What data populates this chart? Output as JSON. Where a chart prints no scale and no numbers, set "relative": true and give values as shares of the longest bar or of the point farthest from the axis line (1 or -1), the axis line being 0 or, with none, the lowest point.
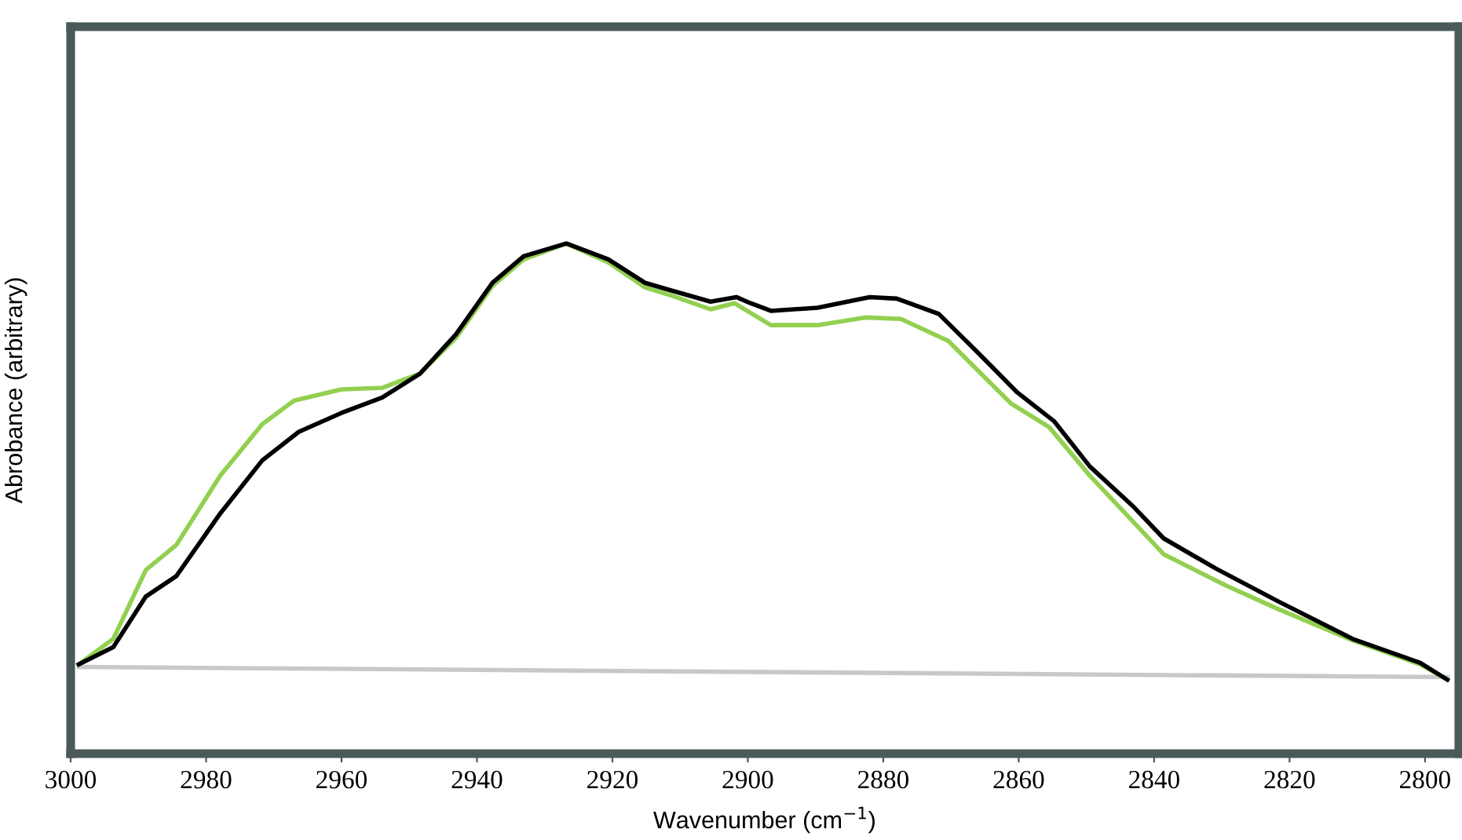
{
  "chart_data": {
    "type": "line",
    "relative": true,
    "xlabel": "Wavenumber (cm$^{−1}$)",
    "ylabel": "Abrobance (arbitrary)",
    "xlim": [
      3000,
      2795
    ],
    "xticks": [
      3000,
      2980,
      2960,
      2940,
      2920,
      2900,
      2880,
      2860,
      2840,
      2820,
      2800
    ],
    "tick_labels": "x",
    "grid": false,
    "legend": false,
    "series": [
      {
        "color": "#c8c8c8",
        "x": [
          2998.8,
          2796.7
        ],
        "values": [
          0.17,
          0.15
        ]
      },
      {
        "color": "#92d050",
        "x": [
          2998.8,
          2993.7,
          2988.9,
          2984.4,
          2977.9,
          2971.7,
          2967.0,
          2960.0,
          2954.0,
          2948.4,
          2943.1,
          2937.7,
          2933.1,
          2926.8,
          2920.6,
          2915.2,
          2911.3,
          2905.5,
          2902.0,
          2896.6,
          2889.7,
          2882.7,
          2877.4,
          2870.4,
          2861.1,
          2855.5,
          2849.5,
          2838.6,
          2829.3,
          2821.6,
          2810.7,
          2800.7,
          2796.7
        ],
        "values": [
          0.175,
          0.225,
          0.36,
          0.409,
          0.545,
          0.646,
          0.692,
          0.714,
          0.717,
          0.745,
          0.815,
          0.917,
          0.969,
          1.0,
          0.963,
          0.914,
          0.898,
          0.871,
          0.883,
          0.84,
          0.84,
          0.855,
          0.852,
          0.809,
          0.686,
          0.64,
          0.545,
          0.391,
          0.329,
          0.283,
          0.222,
          0.175,
          0.145
        ]
      },
      {
        "color": "#000000",
        "x": [
          2998.8,
          2993.7,
          2988.9,
          2984.4,
          2977.9,
          2971.7,
          2966.3,
          2960.0,
          2954.0,
          2948.4,
          2943.1,
          2937.7,
          2933.1,
          2926.8,
          2920.6,
          2915.2,
          2911.3,
          2905.5,
          2901.7,
          2899.6,
          2896.6,
          2889.7,
          2882.0,
          2878.0,
          2871.8,
          2866.4,
          2860.2,
          2854.8,
          2849.5,
          2843.2,
          2838.6,
          2830.9,
          2821.6,
          2810.7,
          2800.7,
          2796.7
        ],
        "values": [
          0.175,
          0.209,
          0.308,
          0.348,
          0.471,
          0.575,
          0.631,
          0.668,
          0.698,
          0.745,
          0.822,
          0.923,
          0.975,
          1.0,
          0.969,
          0.923,
          0.908,
          0.886,
          0.895,
          0.883,
          0.868,
          0.874,
          0.895,
          0.892,
          0.862,
          0.791,
          0.708,
          0.652,
          0.563,
          0.486,
          0.422,
          0.363,
          0.298,
          0.225,
          0.178,
          0.145
        ]
      }
    ]
  }
}
